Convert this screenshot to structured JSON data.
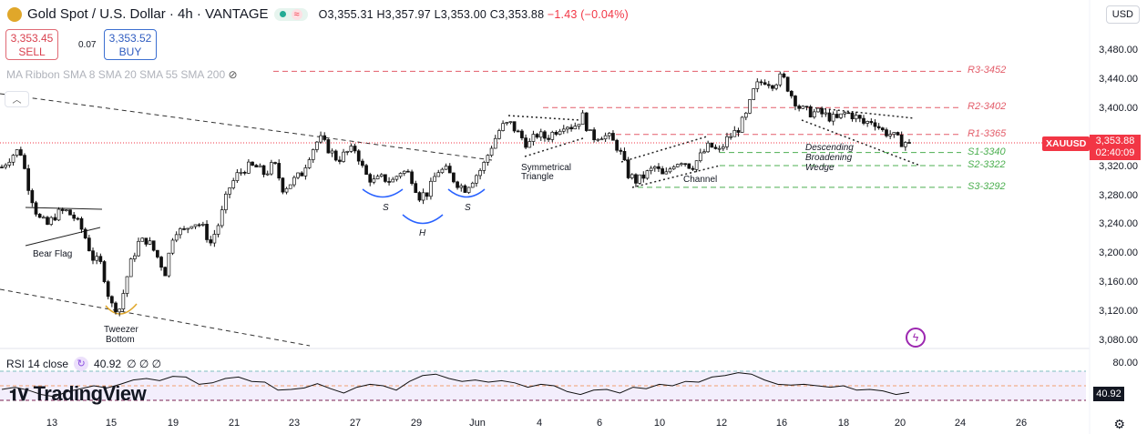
{
  "header": {
    "title": "Gold Spot / U.S. Dollar · 4h · VANTAGE",
    "open": "O3,355.31",
    "high": "H3,357.97",
    "low": "L3,353.00",
    "close": "C3,353.88",
    "change": "−1.43 (−0.04%)"
  },
  "trade": {
    "sell_price": "3,353.45",
    "sell_label": "SELL",
    "spread": "0.07",
    "buy_price": "3,353.52",
    "buy_label": "BUY"
  },
  "indicator": "MA Ribbon SMA 8 SMA 20 SMA 55 SMA 200",
  "currency": "USD",
  "symbol": "XAUUSD",
  "last_price": "3,353.88",
  "countdown": "02:40:09",
  "price_axis": [
    "3,480.00",
    "3,440.00",
    "3,400.00",
    "3,320.00",
    "3,280.00",
    "3,240.00",
    "3,200.00",
    "3,160.00",
    "3,120.00",
    "3,080.00"
  ],
  "levels": [
    {
      "label": "R3-3452",
      "value": 3452,
      "color": "#e35d6a"
    },
    {
      "label": "R2-3402",
      "value": 3402,
      "color": "#e35d6a"
    },
    {
      "label": "R1-3365",
      "value": 3365,
      "color": "#e35d6a"
    },
    {
      "label": "S1-3340",
      "value": 3340,
      "color": "#4caf50"
    },
    {
      "label": "S2-3322",
      "value": 3322,
      "color": "#4caf50"
    },
    {
      "label": "S3-3292",
      "value": 3292,
      "color": "#4caf50"
    }
  ],
  "annotations": {
    "bear_flag": "Bear Flag",
    "tweezer": "Tweezer",
    "bottom": "Bottom",
    "s1": "S",
    "h": "H",
    "s2": "S",
    "sym1": "Symmetrical",
    "sym2": "Triangle",
    "channel": "Channel",
    "dbw1": "Descending",
    "dbw2": "Broadening",
    "dbw3": "Wedge"
  },
  "rsi": {
    "label": "RSI 14 close",
    "value": "40.92",
    "extra": "∅ ∅ ∅",
    "axis": "80.00",
    "tag": "40.92"
  },
  "watermark": "TradingView",
  "time_axis": [
    "13",
    "15",
    "19",
    "21",
    "23",
    "27",
    "29",
    "Jun",
    "4",
    "6",
    "10",
    "12",
    "16",
    "18",
    "20",
    "24",
    "26"
  ],
  "chart_data": {
    "type": "candlestick",
    "ylim": [
      3080,
      3480
    ],
    "closes": [
      3320,
      3335,
      3345,
      3290,
      3250,
      3240,
      3255,
      3260,
      3250,
      3230,
      3195,
      3185,
      3130,
      3125,
      3180,
      3215,
      3220,
      3200,
      3175,
      3235,
      3230,
      3245,
      3240,
      3215,
      3245,
      3290,
      3310,
      3320,
      3320,
      3310,
      3325,
      3290,
      3300,
      3310,
      3340,
      3360,
      3345,
      3330,
      3340,
      3345,
      3310,
      3300,
      3305,
      3300,
      3315,
      3310,
      3280,
      3285,
      3315,
      3315,
      3300,
      3290,
      3305,
      3320,
      3350,
      3375,
      3380,
      3365,
      3350,
      3365,
      3360,
      3370,
      3380,
      3375,
      3390,
      3360,
      3365,
      3360,
      3345,
      3310,
      3300,
      3310,
      3320,
      3305,
      3325,
      3330,
      3320,
      3335,
      3350,
      3340,
      3360,
      3370,
      3390,
      3430,
      3440,
      3435,
      3445,
      3420,
      3400,
      3395,
      3395,
      3390,
      3385,
      3395,
      3390,
      3380,
      3385,
      3370,
      3365,
      3355,
      3353.88
    ],
    "rsi": [
      45,
      48,
      44,
      38,
      35,
      42,
      46,
      50,
      47,
      52,
      58,
      60,
      57,
      63,
      62,
      52,
      54,
      60,
      62,
      56,
      55,
      44,
      45,
      47,
      53,
      46,
      40,
      48,
      52,
      50,
      44,
      56,
      64,
      66,
      60,
      56,
      58,
      55,
      57,
      54,
      48,
      52,
      50,
      42,
      38,
      44,
      45,
      40,
      48,
      46,
      52,
      50,
      56,
      55,
      62,
      64,
      68,
      66,
      58,
      52,
      51,
      52,
      50,
      48,
      50,
      44,
      45,
      43,
      38,
      41
    ]
  }
}
